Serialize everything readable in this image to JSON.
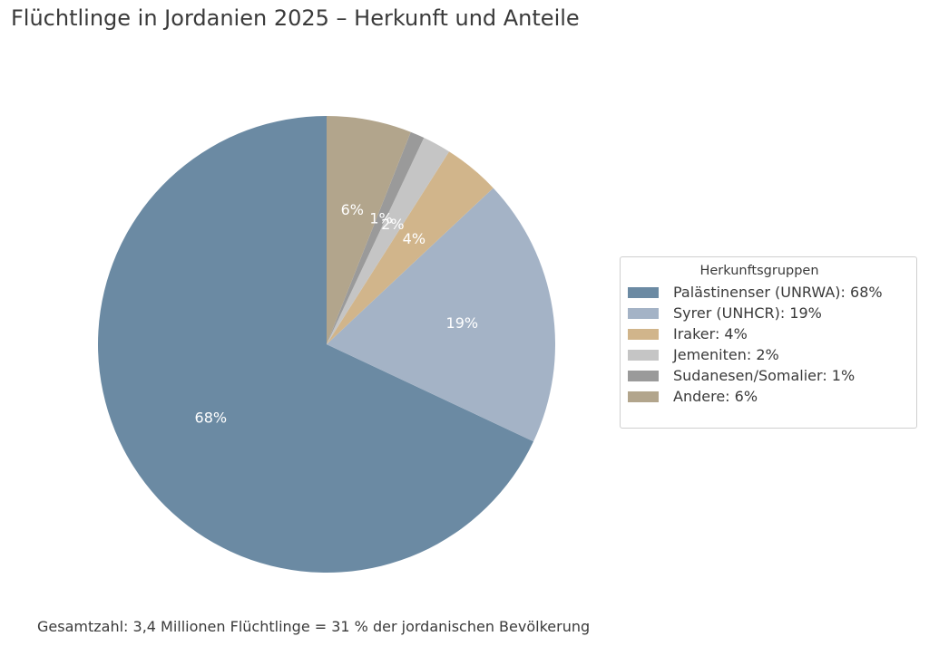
{
  "chart_data": {
    "type": "pie",
    "title": "Flüchtlinge in Jordanien 2025 – Herkunft und Anteile",
    "legend_title": "Herkunftsgruppen",
    "legend_position": "right",
    "start_angle_deg": 90,
    "direction": "counterclockwise",
    "slices": [
      {
        "name": "Palästinenser (UNRWA)",
        "value": 68,
        "label": "68%",
        "legend": "Palästinenser (UNRWA): 68%",
        "color": "#6b8aa3"
      },
      {
        "name": "Syrer (UNHCR)",
        "value": 19,
        "label": "19%",
        "legend": "Syrer (UNHCR): 19%",
        "color": "#a4b3c6"
      },
      {
        "name": "Iraker",
        "value": 4,
        "label": "4%",
        "legend": "Iraker: 4%",
        "color": "#d1b58b"
      },
      {
        "name": "Jemeniten",
        "value": 2,
        "label": "2%",
        "legend": "Jemeniten: 2%",
        "color": "#c5c5c5"
      },
      {
        "name": "Sudanesen/Somalier",
        "value": 1,
        "label": "1%",
        "legend": "Sudanesen/Somalier: 1%",
        "color": "#9a9a9a"
      },
      {
        "name": "Andere",
        "value": 6,
        "label": "6%",
        "legend": "Andere: 6%",
        "color": "#b2a58c"
      }
    ]
  },
  "footnote": "Gesamtzahl: 3,4 Millionen Flüchtlinge = 31 % der jordanischen Bevölkerung"
}
